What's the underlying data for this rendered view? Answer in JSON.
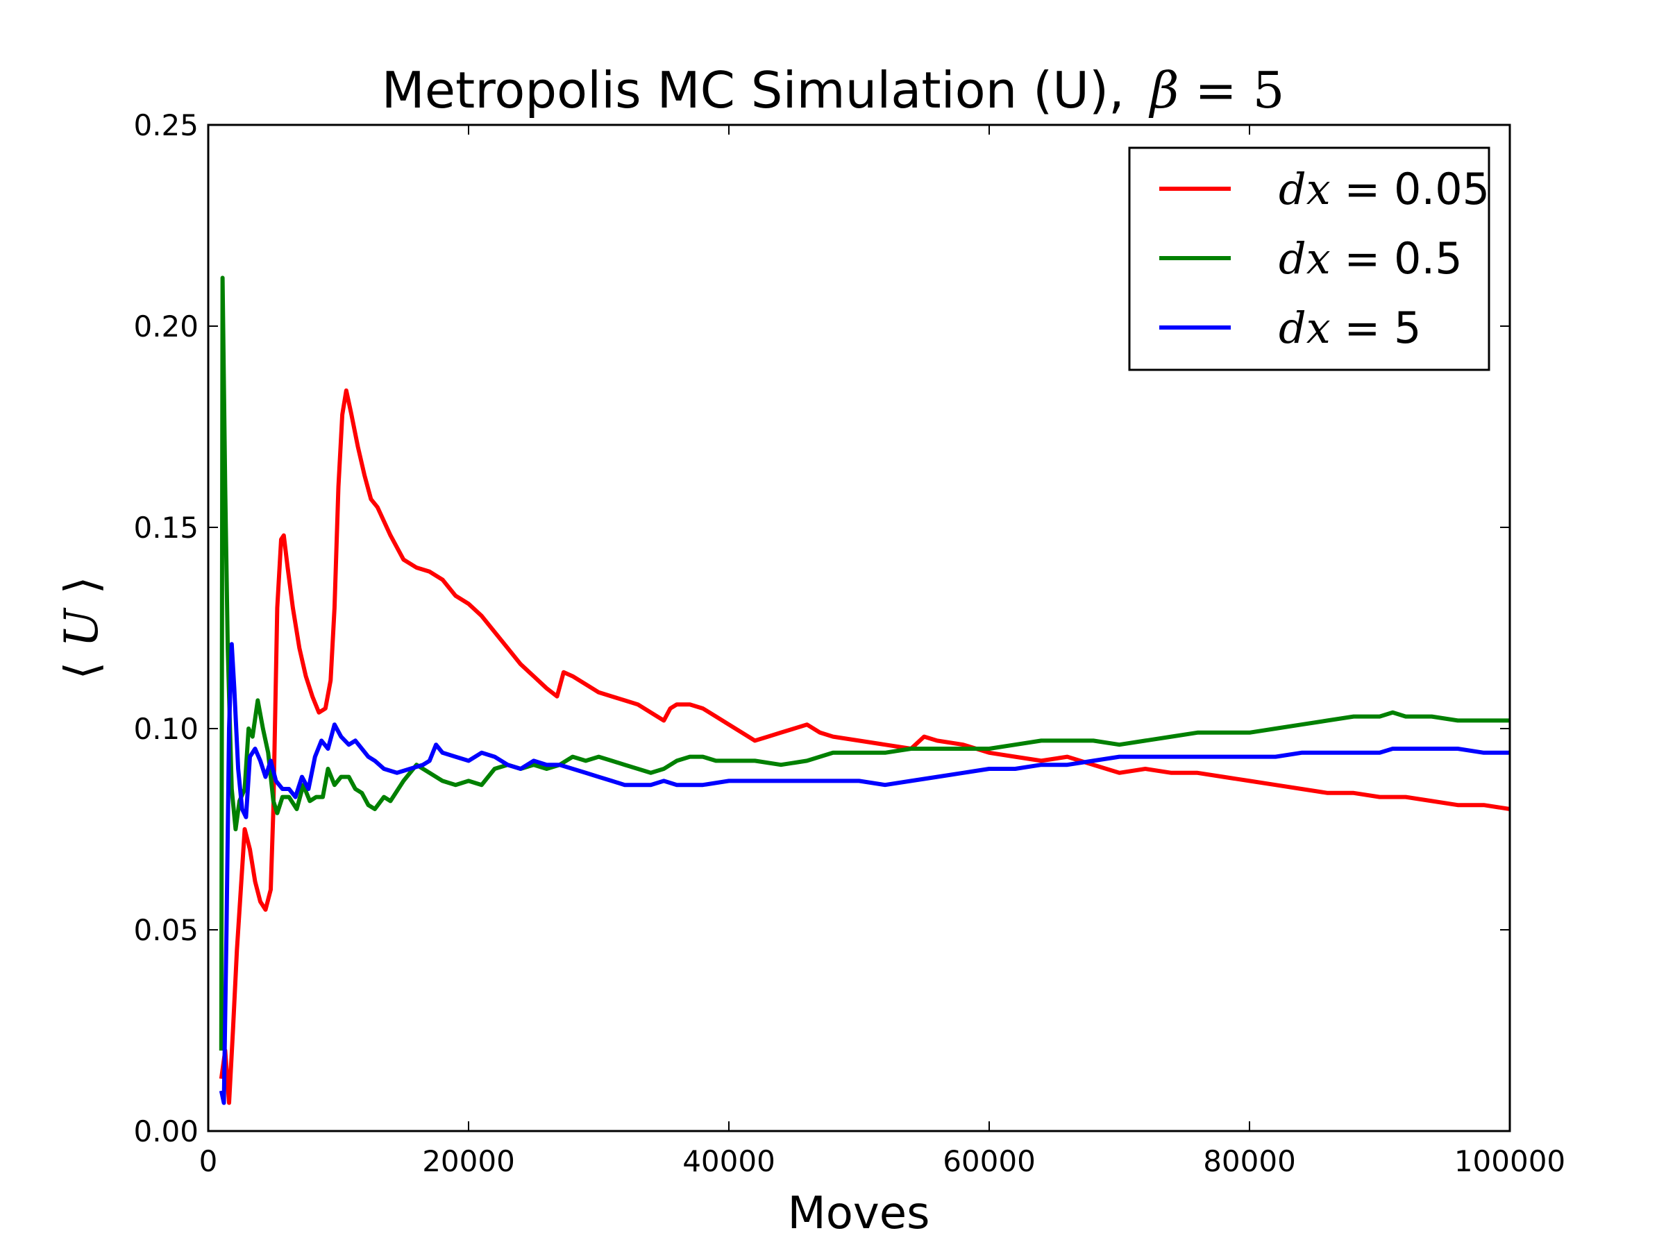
{
  "chart_data": {
    "type": "line",
    "title": {
      "text": "Metropolis MC Simulation (U),",
      "symbol": "β",
      "equals": "=",
      "value": "5"
    },
    "xlabel": "Moves",
    "ylabel": {
      "left": "⟨",
      "symbol": "U",
      "right": "⟩"
    },
    "xlim": [
      0,
      100000
    ],
    "ylim": [
      0.0,
      0.25
    ],
    "xticks": [
      "0",
      "20000",
      "40000",
      "60000",
      "80000",
      "100000"
    ],
    "yticks": [
      "0.00",
      "0.05",
      "0.10",
      "0.15",
      "0.20",
      "0.25"
    ],
    "grid": false,
    "legend_position": "top-right",
    "series": [
      {
        "name": "dx=0.05",
        "legend": {
          "symbol": "dx",
          "equals": "=",
          "value": "0.05"
        },
        "color": "#ff0000",
        "points": [
          [
            1000,
            0.013
          ],
          [
            1300,
            0.02
          ],
          [
            1600,
            0.007
          ],
          [
            1900,
            0.025
          ],
          [
            2200,
            0.045
          ],
          [
            2500,
            0.06
          ],
          [
            2800,
            0.075
          ],
          [
            3200,
            0.07
          ],
          [
            3600,
            0.062
          ],
          [
            4000,
            0.057
          ],
          [
            4400,
            0.055
          ],
          [
            4800,
            0.06
          ],
          [
            5000,
            0.08
          ],
          [
            5300,
            0.13
          ],
          [
            5600,
            0.147
          ],
          [
            5800,
            0.148
          ],
          [
            6100,
            0.14
          ],
          [
            6500,
            0.13
          ],
          [
            7000,
            0.12
          ],
          [
            7500,
            0.113
          ],
          [
            8000,
            0.108
          ],
          [
            8500,
            0.104
          ],
          [
            9000,
            0.105
          ],
          [
            9400,
            0.112
          ],
          [
            9700,
            0.13
          ],
          [
            10000,
            0.16
          ],
          [
            10300,
            0.178
          ],
          [
            10600,
            0.184
          ],
          [
            11000,
            0.178
          ],
          [
            11500,
            0.17
          ],
          [
            12000,
            0.163
          ],
          [
            12500,
            0.157
          ],
          [
            13000,
            0.155
          ],
          [
            14000,
            0.148
          ],
          [
            15000,
            0.142
          ],
          [
            16000,
            0.14
          ],
          [
            17000,
            0.139
          ],
          [
            18000,
            0.137
          ],
          [
            19000,
            0.133
          ],
          [
            20000,
            0.131
          ],
          [
            21000,
            0.128
          ],
          [
            22000,
            0.124
          ],
          [
            23000,
            0.12
          ],
          [
            24000,
            0.116
          ],
          [
            25000,
            0.113
          ],
          [
            26000,
            0.11
          ],
          [
            26800,
            0.108
          ],
          [
            27300,
            0.114
          ],
          [
            28000,
            0.113
          ],
          [
            29000,
            0.111
          ],
          [
            30000,
            0.109
          ],
          [
            31000,
            0.108
          ],
          [
            32000,
            0.107
          ],
          [
            33000,
            0.106
          ],
          [
            34000,
            0.104
          ],
          [
            35000,
            0.102
          ],
          [
            35500,
            0.105
          ],
          [
            36000,
            0.106
          ],
          [
            37000,
            0.106
          ],
          [
            38000,
            0.105
          ],
          [
            39000,
            0.103
          ],
          [
            40000,
            0.101
          ],
          [
            41000,
            0.099
          ],
          [
            42000,
            0.097
          ],
          [
            43000,
            0.098
          ],
          [
            44000,
            0.099
          ],
          [
            45000,
            0.1
          ],
          [
            46000,
            0.101
          ],
          [
            47000,
            0.099
          ],
          [
            48000,
            0.098
          ],
          [
            50000,
            0.097
          ],
          [
            52000,
            0.096
          ],
          [
            54000,
            0.095
          ],
          [
            55000,
            0.098
          ],
          [
            56000,
            0.097
          ],
          [
            58000,
            0.096
          ],
          [
            60000,
            0.094
          ],
          [
            62000,
            0.093
          ],
          [
            64000,
            0.092
          ],
          [
            66000,
            0.093
          ],
          [
            68000,
            0.091
          ],
          [
            70000,
            0.089
          ],
          [
            72000,
            0.09
          ],
          [
            74000,
            0.089
          ],
          [
            76000,
            0.089
          ],
          [
            78000,
            0.088
          ],
          [
            80000,
            0.087
          ],
          [
            82000,
            0.086
          ],
          [
            84000,
            0.085
          ],
          [
            86000,
            0.084
          ],
          [
            88000,
            0.084
          ],
          [
            90000,
            0.083
          ],
          [
            92000,
            0.083
          ],
          [
            94000,
            0.082
          ],
          [
            96000,
            0.081
          ],
          [
            98000,
            0.081
          ],
          [
            100000,
            0.08
          ]
        ]
      },
      {
        "name": "dx=0.5",
        "legend": {
          "symbol": "dx",
          "equals": "=",
          "value": "0.5"
        },
        "color": "#008000",
        "points": [
          [
            1000,
            0.02
          ],
          [
            1100,
            0.212
          ],
          [
            1300,
            0.16
          ],
          [
            1500,
            0.12
          ],
          [
            1800,
            0.085
          ],
          [
            2100,
            0.075
          ],
          [
            2400,
            0.082
          ],
          [
            2800,
            0.085
          ],
          [
            3100,
            0.1
          ],
          [
            3400,
            0.098
          ],
          [
            3800,
            0.107
          ],
          [
            4200,
            0.1
          ],
          [
            4600,
            0.094
          ],
          [
            5000,
            0.082
          ],
          [
            5300,
            0.079
          ],
          [
            5700,
            0.083
          ],
          [
            6200,
            0.083
          ],
          [
            6800,
            0.08
          ],
          [
            7300,
            0.086
          ],
          [
            7800,
            0.082
          ],
          [
            8300,
            0.083
          ],
          [
            8800,
            0.083
          ],
          [
            9200,
            0.09
          ],
          [
            9700,
            0.086
          ],
          [
            10200,
            0.088
          ],
          [
            10800,
            0.088
          ],
          [
            11300,
            0.085
          ],
          [
            11800,
            0.084
          ],
          [
            12300,
            0.081
          ],
          [
            12800,
            0.08
          ],
          [
            13500,
            0.083
          ],
          [
            14000,
            0.082
          ],
          [
            15000,
            0.087
          ],
          [
            16000,
            0.091
          ],
          [
            17000,
            0.089
          ],
          [
            18000,
            0.087
          ],
          [
            19000,
            0.086
          ],
          [
            20000,
            0.087
          ],
          [
            21000,
            0.086
          ],
          [
            22000,
            0.09
          ],
          [
            23000,
            0.091
          ],
          [
            24000,
            0.09
          ],
          [
            25000,
            0.091
          ],
          [
            26000,
            0.09
          ],
          [
            27000,
            0.091
          ],
          [
            28000,
            0.093
          ],
          [
            29000,
            0.092
          ],
          [
            30000,
            0.093
          ],
          [
            31000,
            0.092
          ],
          [
            32000,
            0.091
          ],
          [
            33000,
            0.09
          ],
          [
            34000,
            0.089
          ],
          [
            35000,
            0.09
          ],
          [
            36000,
            0.092
          ],
          [
            37000,
            0.093
          ],
          [
            38000,
            0.093
          ],
          [
            39000,
            0.092
          ],
          [
            40000,
            0.092
          ],
          [
            42000,
            0.092
          ],
          [
            44000,
            0.091
          ],
          [
            46000,
            0.092
          ],
          [
            48000,
            0.094
          ],
          [
            50000,
            0.094
          ],
          [
            52000,
            0.094
          ],
          [
            54000,
            0.095
          ],
          [
            56000,
            0.095
          ],
          [
            58000,
            0.095
          ],
          [
            60000,
            0.095
          ],
          [
            62000,
            0.096
          ],
          [
            64000,
            0.097
          ],
          [
            66000,
            0.097
          ],
          [
            68000,
            0.097
          ],
          [
            70000,
            0.096
          ],
          [
            72000,
            0.097
          ],
          [
            74000,
            0.098
          ],
          [
            76000,
            0.099
          ],
          [
            78000,
            0.099
          ],
          [
            80000,
            0.099
          ],
          [
            82000,
            0.1
          ],
          [
            84000,
            0.101
          ],
          [
            86000,
            0.102
          ],
          [
            88000,
            0.103
          ],
          [
            90000,
            0.103
          ],
          [
            91000,
            0.104
          ],
          [
            92000,
            0.103
          ],
          [
            94000,
            0.103
          ],
          [
            96000,
            0.102
          ],
          [
            98000,
            0.102
          ],
          [
            100000,
            0.102
          ]
        ]
      },
      {
        "name": "dx=5",
        "legend": {
          "symbol": "dx",
          "equals": "=",
          "value": "5"
        },
        "color": "#0000ff",
        "points": [
          [
            1000,
            0.01
          ],
          [
            1200,
            0.007
          ],
          [
            1400,
            0.05
          ],
          [
            1600,
            0.1
          ],
          [
            1800,
            0.121
          ],
          [
            2000,
            0.11
          ],
          [
            2300,
            0.09
          ],
          [
            2600,
            0.08
          ],
          [
            2900,
            0.078
          ],
          [
            3200,
            0.093
          ],
          [
            3600,
            0.095
          ],
          [
            4000,
            0.092
          ],
          [
            4400,
            0.088
          ],
          [
            4800,
            0.092
          ],
          [
            5200,
            0.087
          ],
          [
            5700,
            0.085
          ],
          [
            6200,
            0.085
          ],
          [
            6700,
            0.083
          ],
          [
            7200,
            0.088
          ],
          [
            7700,
            0.085
          ],
          [
            8200,
            0.093
          ],
          [
            8700,
            0.097
          ],
          [
            9200,
            0.095
          ],
          [
            9700,
            0.101
          ],
          [
            10200,
            0.098
          ],
          [
            10800,
            0.096
          ],
          [
            11300,
            0.097
          ],
          [
            11800,
            0.095
          ],
          [
            12300,
            0.093
          ],
          [
            12800,
            0.092
          ],
          [
            13500,
            0.09
          ],
          [
            14500,
            0.089
          ],
          [
            15500,
            0.09
          ],
          [
            16500,
            0.091
          ],
          [
            17000,
            0.092
          ],
          [
            17500,
            0.096
          ],
          [
            18000,
            0.094
          ],
          [
            19000,
            0.093
          ],
          [
            20000,
            0.092
          ],
          [
            21000,
            0.094
          ],
          [
            22000,
            0.093
          ],
          [
            23000,
            0.091
          ],
          [
            24000,
            0.09
          ],
          [
            25000,
            0.092
          ],
          [
            26000,
            0.091
          ],
          [
            27000,
            0.091
          ],
          [
            28000,
            0.09
          ],
          [
            29000,
            0.089
          ],
          [
            30000,
            0.088
          ],
          [
            31000,
            0.087
          ],
          [
            32000,
            0.086
          ],
          [
            33000,
            0.086
          ],
          [
            34000,
            0.086
          ],
          [
            35000,
            0.087
          ],
          [
            36000,
            0.086
          ],
          [
            37000,
            0.086
          ],
          [
            38000,
            0.086
          ],
          [
            40000,
            0.087
          ],
          [
            42000,
            0.087
          ],
          [
            44000,
            0.087
          ],
          [
            46000,
            0.087
          ],
          [
            48000,
            0.087
          ],
          [
            50000,
            0.087
          ],
          [
            52000,
            0.086
          ],
          [
            54000,
            0.087
          ],
          [
            56000,
            0.088
          ],
          [
            58000,
            0.089
          ],
          [
            60000,
            0.09
          ],
          [
            62000,
            0.09
          ],
          [
            64000,
            0.091
          ],
          [
            66000,
            0.091
          ],
          [
            68000,
            0.092
          ],
          [
            70000,
            0.093
          ],
          [
            72000,
            0.093
          ],
          [
            74000,
            0.093
          ],
          [
            76000,
            0.093
          ],
          [
            78000,
            0.093
          ],
          [
            80000,
            0.093
          ],
          [
            82000,
            0.093
          ],
          [
            84000,
            0.094
          ],
          [
            86000,
            0.094
          ],
          [
            88000,
            0.094
          ],
          [
            90000,
            0.094
          ],
          [
            91000,
            0.095
          ],
          [
            92000,
            0.095
          ],
          [
            94000,
            0.095
          ],
          [
            96000,
            0.095
          ],
          [
            98000,
            0.094
          ],
          [
            100000,
            0.094
          ]
        ]
      }
    ]
  }
}
